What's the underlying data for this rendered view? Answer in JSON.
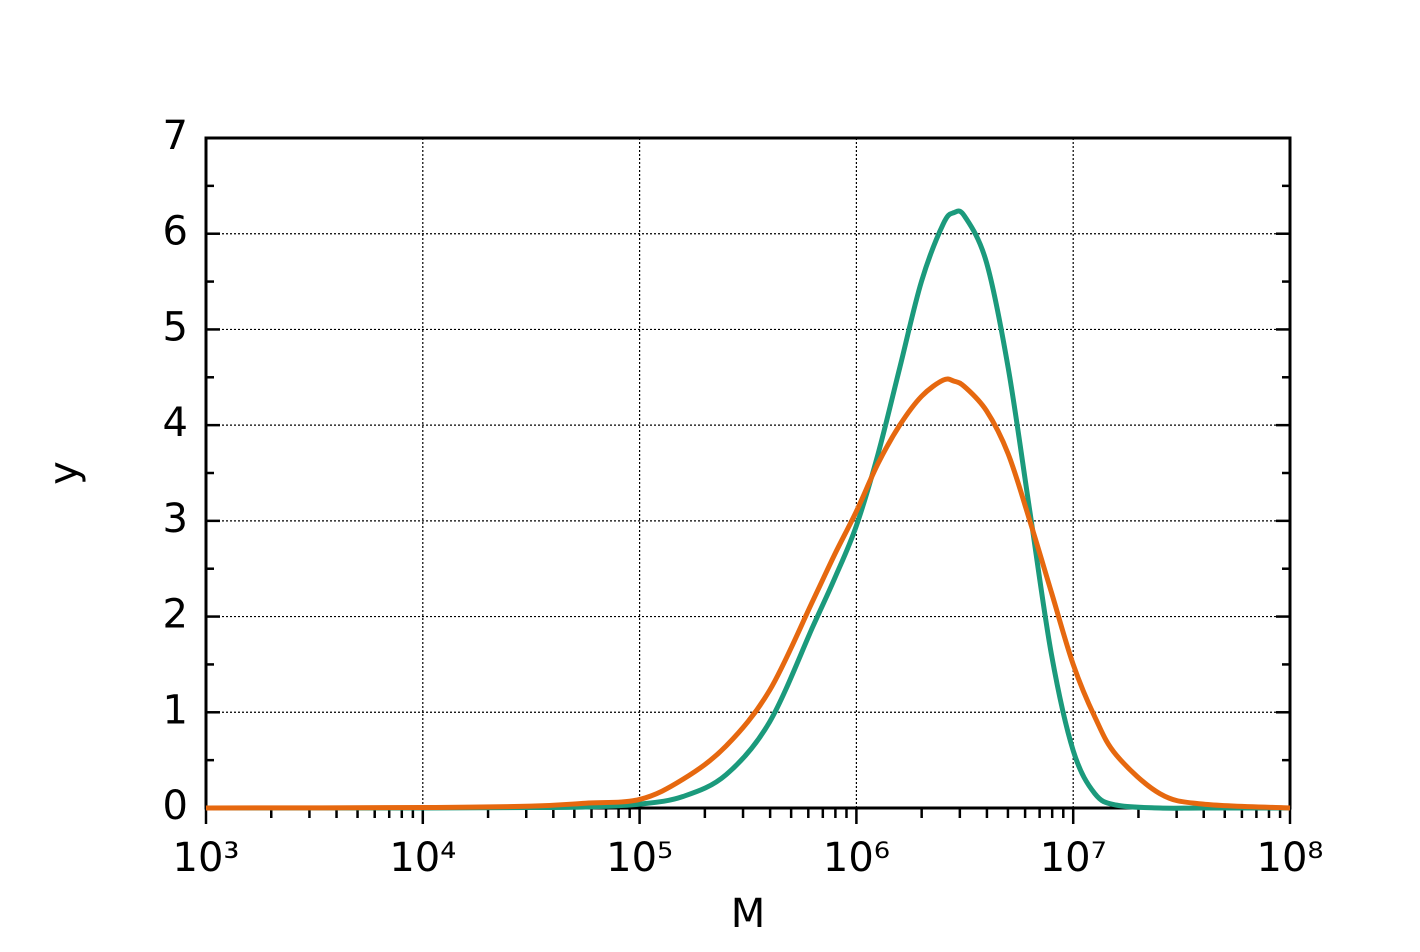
{
  "chart_data": {
    "type": "line",
    "x_label": "M",
    "y_label": "y",
    "x_log": true,
    "grid": true,
    "x": [
      1000,
      10000,
      31623,
      56234,
      100000,
      158489,
      251189,
      398107,
      630957,
      794328,
      1000000,
      1258925,
      1584893,
      1995262,
      2511886,
      2818383,
      3162278,
      3981072,
      5011872,
      6309573,
      7943282,
      10000000,
      12589254,
      15848932,
      25118864,
      39810717,
      100000000
    ],
    "series": [
      {
        "color": "#1b9a7c",
        "values": [
          0,
          0,
          0.005,
          0.01,
          0.04,
          0.12,
          0.35,
          0.9,
          1.9,
          2.4,
          2.95,
          3.7,
          4.6,
          5.5,
          6.1,
          6.22,
          6.18,
          5.7,
          4.6,
          3.1,
          1.6,
          0.6,
          0.15,
          0.03,
          0,
          0,
          0
        ]
      },
      {
        "color": "#e6680f",
        "values": [
          0,
          0.005,
          0.02,
          0.05,
          0.09,
          0.3,
          0.65,
          1.23,
          2.17,
          2.65,
          3.1,
          3.6,
          4.0,
          4.3,
          4.47,
          4.46,
          4.4,
          4.15,
          3.7,
          3.0,
          2.25,
          1.5,
          0.95,
          0.55,
          0.15,
          0.04,
          0
        ]
      }
    ],
    "xlim": [
      1000,
      100000000
    ],
    "xticks": [
      {
        "value": 1000,
        "label": "10³"
      },
      {
        "value": 10000,
        "label": "10⁴"
      },
      {
        "value": 100000,
        "label": "10⁵"
      },
      {
        "value": 1000000,
        "label": "10⁶"
      },
      {
        "value": 10000000,
        "label": "10⁷"
      },
      {
        "value": 100000000,
        "label": "10⁸"
      }
    ],
    "ylim": [
      0,
      7
    ],
    "yticks": [
      0,
      1,
      2,
      3,
      4,
      5,
      6,
      7
    ]
  }
}
